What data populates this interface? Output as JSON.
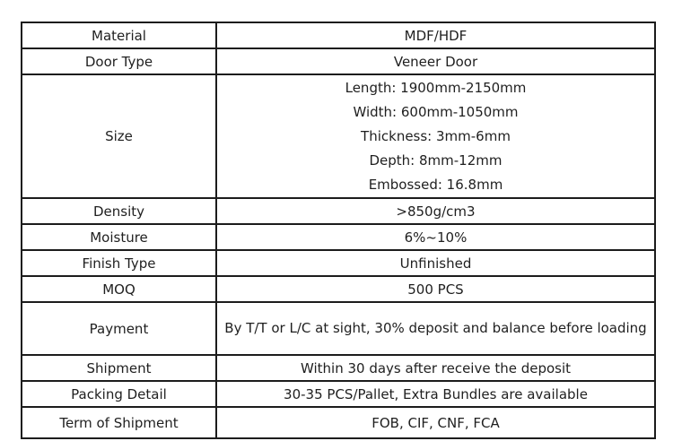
{
  "colors": {
    "border": "#1c1c1c",
    "text": "#1f1f1f",
    "background": "#ffffff"
  },
  "table": {
    "rows": [
      {
        "label": "Material",
        "value": "MDF/HDF"
      },
      {
        "label": "Door Type",
        "value": "Veneer Door"
      },
      {
        "label": "Size",
        "value_lines": [
          "Length: 1900mm-2150mm",
          "Width: 600mm-1050mm",
          "Thickness: 3mm-6mm",
          "Depth: 8mm-12mm",
          "Embossed: 16.8mm"
        ]
      },
      {
        "label": "Density",
        "value": ">850g/cm3"
      },
      {
        "label": "Moisture",
        "value": "6%~10%"
      },
      {
        "label": "Finish Type",
        "value": "Unfinished"
      },
      {
        "label": "MOQ",
        "value": "500 PCS"
      },
      {
        "label": "Payment",
        "value": "By T/T or L/C at sight, 30% deposit and balance before loading"
      },
      {
        "label": "Shipment",
        "value": "Within 30 days after receive the deposit"
      },
      {
        "label": "Packing Detail",
        "value": "30-35 PCS/Pallet, Extra Bundles are available"
      },
      {
        "label": "Term of Shipment",
        "value": "FOB, CIF, CNF, FCA"
      }
    ]
  }
}
